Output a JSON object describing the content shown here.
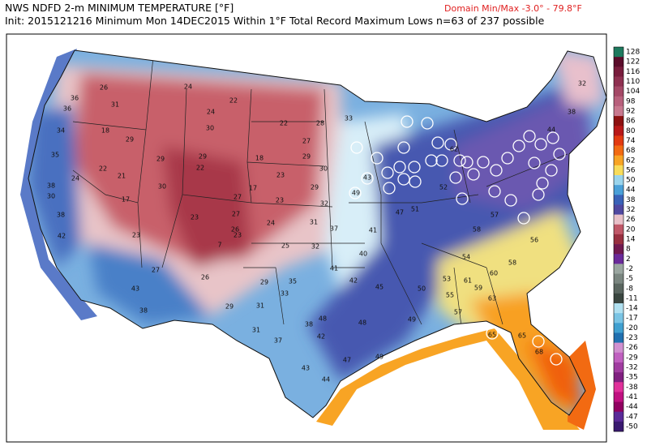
{
  "header": {
    "title": "NWS NDFD 2-m MINIMUM TEMPERATURE [°F]",
    "domain": "Domain Min/Max  -3.0° -  79.8°F",
    "subtitle": "Init: 2015121216 Minimum Mon 14DEC2015  Within 1°F   Total Record Maximum Lows n=63 of 237 possible"
  },
  "colorbar": {
    "labels": [
      128,
      122,
      116,
      110,
      104,
      98,
      92,
      86,
      80,
      74,
      68,
      62,
      56,
      50,
      44,
      38,
      32,
      26,
      20,
      14,
      8,
      2,
      -2,
      -5,
      -8,
      -11,
      -14,
      -17,
      -20,
      -23,
      -26,
      -29,
      -32,
      -35,
      -38,
      -41,
      -44,
      -47,
      -50
    ],
    "colors": [
      "#1e7a5e",
      "#5a0c2a",
      "#781c3c",
      "#8e3050",
      "#a44866",
      "#b8607c",
      "#c8788e",
      "#8c1010",
      "#b81818",
      "#e23a10",
      "#f26a12",
      "#f8a424",
      "#f8dc5a",
      "#9ad4ec",
      "#4aa0d8",
      "#3a62b8",
      "#5048a0",
      "#e8c0c8",
      "#c05868",
      "#983040",
      "#701a50",
      "#6a2a9a",
      "#9aa6a0",
      "#7a8680",
      "#5a6660",
      "#3a4640",
      "#b0e0f0",
      "#7ac4e4",
      "#40a0d0",
      "#2070b0",
      "#d090d0",
      "#c060c0",
      "#a03ca0",
      "#802080",
      "#e0309a",
      "#c01080",
      "#900060",
      "#5a2a98",
      "#3a1a70"
    ]
  },
  "stations": [
    26,
    31,
    36,
    36,
    34,
    35,
    18,
    29,
    22,
    21,
    24,
    38,
    30,
    38,
    17,
    42,
    29,
    30,
    22,
    24,
    24,
    22,
    30,
    29,
    18,
    17,
    27,
    23,
    27,
    26,
    23,
    7,
    27,
    26,
    23,
    43,
    38,
    29,
    29,
    31,
    31,
    37,
    33,
    35,
    41,
    40,
    42,
    45,
    48,
    38,
    42,
    43,
    44,
    47,
    49,
    48,
    49,
    50,
    53,
    55,
    57,
    59,
    60,
    63,
    65,
    65,
    68,
    61,
    54,
    58,
    56,
    58,
    57,
    22,
    28,
    29,
    27,
    33,
    30,
    29,
    32,
    23,
    23,
    24,
    31,
    25,
    32,
    37,
    41,
    47,
    49,
    43,
    51,
    52,
    32,
    38,
    44,
    62
  ]
}
